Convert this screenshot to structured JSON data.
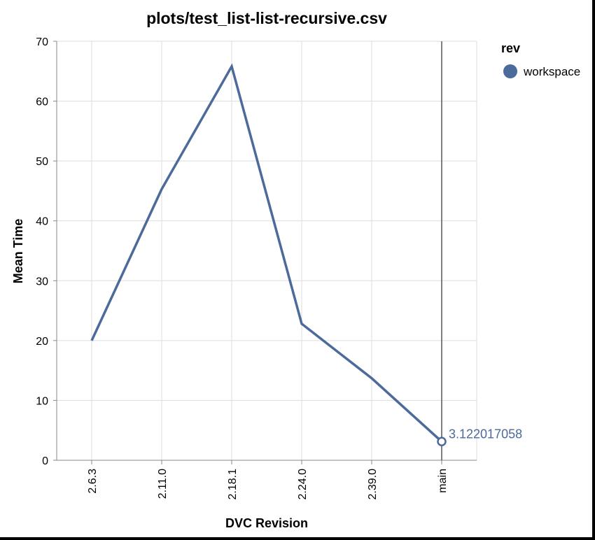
{
  "colors": {
    "series": "#4c6a9a",
    "grid": "#dddddd",
    "axis": "#888888",
    "rule": "#555555"
  },
  "chart_data": {
    "type": "line",
    "title": "plots/test_list-list-recursive.csv",
    "xlabel": "DVC Revision",
    "ylabel": "Mean Time",
    "categories": [
      "2.6.3",
      "2.11.0",
      "2.18.1",
      "2.24.0",
      "2.39.0",
      "main"
    ],
    "ylim": [
      0,
      70
    ],
    "yticks": [
      0,
      10,
      20,
      30,
      40,
      50,
      60,
      70
    ],
    "grid": true,
    "legend": {
      "title": "rev",
      "placement": "top-right"
    },
    "series": [
      {
        "name": "workspace",
        "values": [
          20.0,
          45.3,
          65.8,
          22.8,
          13.7,
          3.122017058
        ]
      }
    ],
    "highlight": {
      "category": "main",
      "label": "3.122017058"
    }
  }
}
